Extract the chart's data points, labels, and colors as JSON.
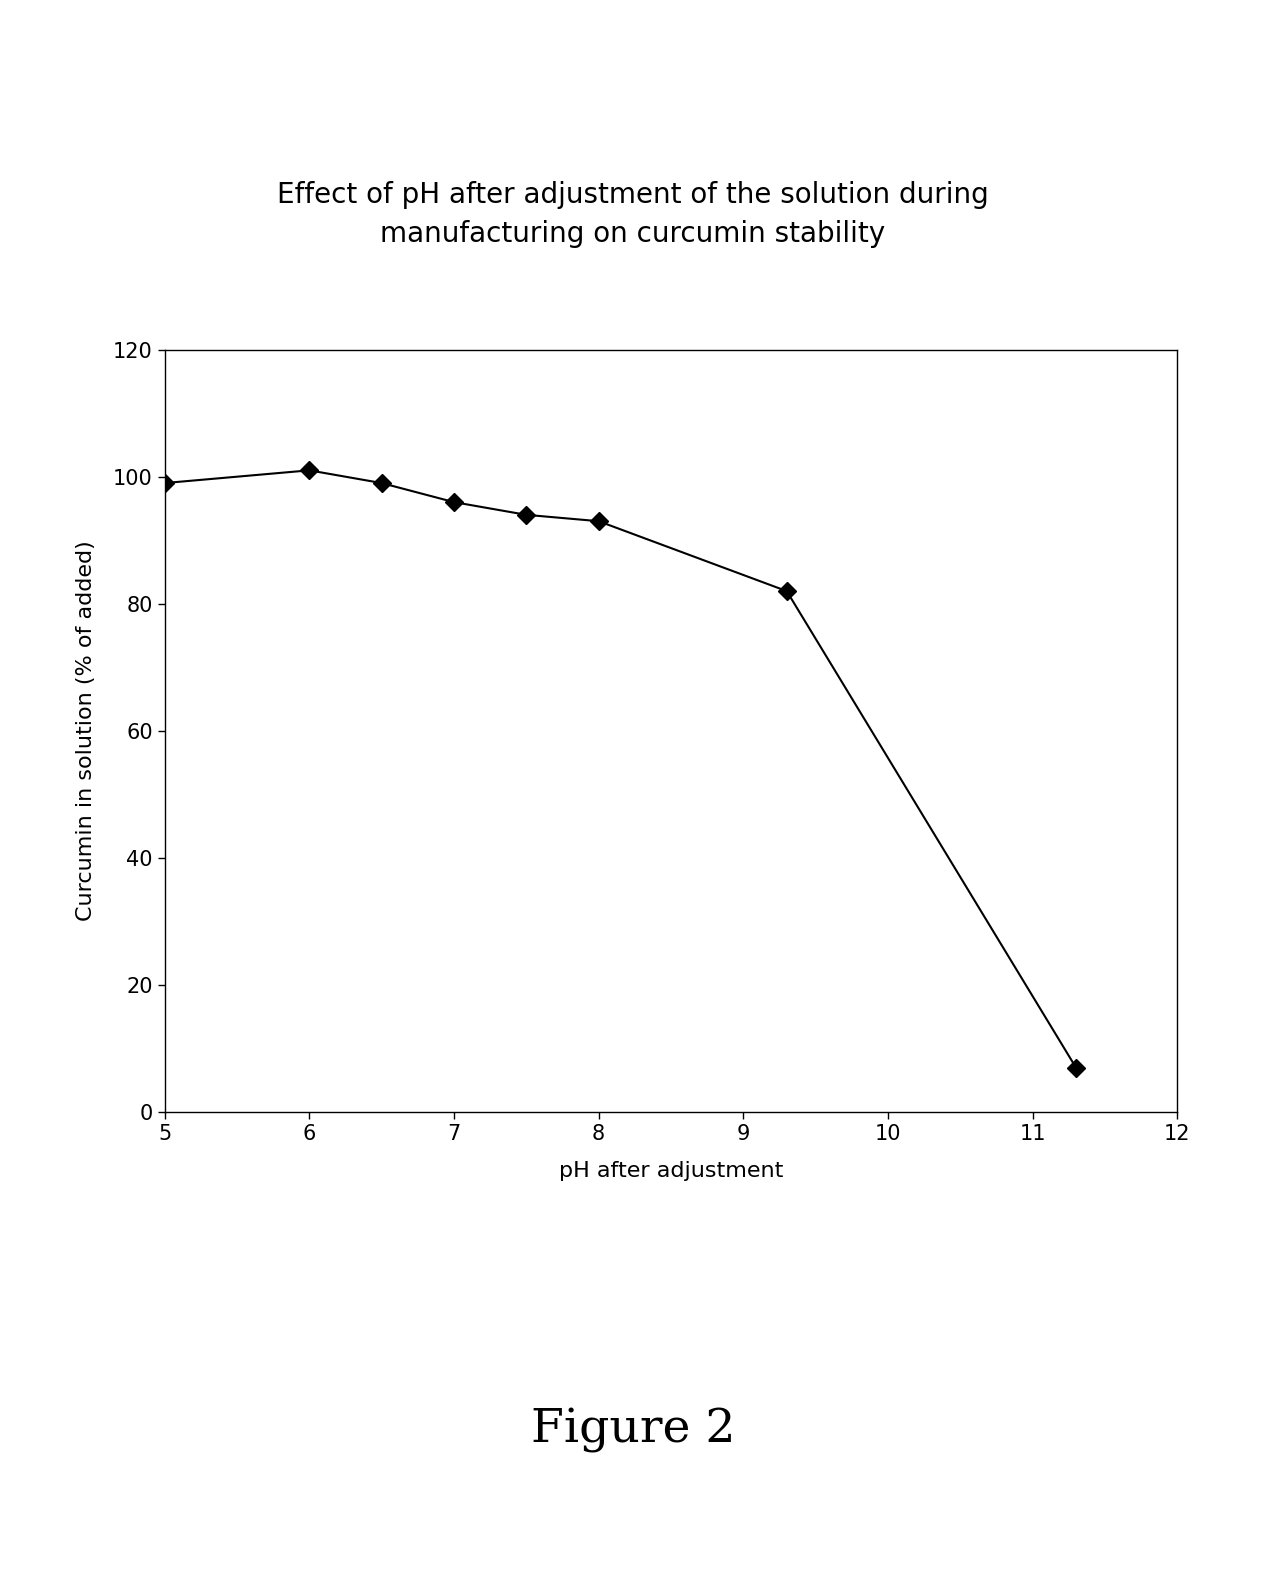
{
  "title_line1": "Effect of pH after adjustment of the solution during",
  "title_line2": "manufacturing on curcumin stability",
  "xlabel": "pH after adjustment",
  "ylabel": "Curcumin in solution (% of added)",
  "figure_label": "Figure 2",
  "x_data": [
    5.0,
    6.0,
    6.5,
    7.0,
    7.5,
    8.0,
    9.3,
    11.3
  ],
  "y_data": [
    99.0,
    101.0,
    99.0,
    96.0,
    94.0,
    93.0,
    82.0,
    7.0
  ],
  "xlim": [
    5,
    12
  ],
  "ylim": [
    0,
    120
  ],
  "xticks": [
    5,
    6,
    7,
    8,
    9,
    10,
    11,
    12
  ],
  "yticks": [
    0,
    20,
    40,
    60,
    80,
    100,
    120
  ],
  "line_color": "#000000",
  "marker_color": "#000000",
  "marker": "D",
  "marker_size": 9,
  "line_width": 1.5,
  "background_color": "#ffffff",
  "title_fontsize": 20,
  "axis_label_fontsize": 16,
  "tick_fontsize": 15,
  "figure_label_fontsize": 34
}
